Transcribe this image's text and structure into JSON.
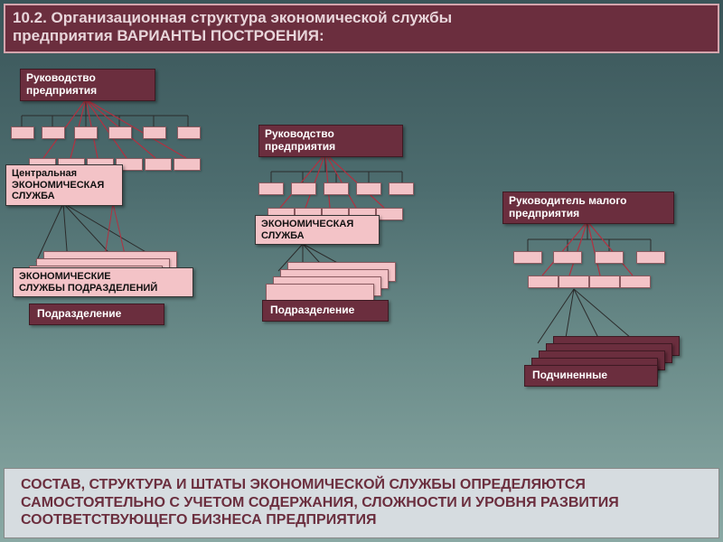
{
  "colors": {
    "bg_top": "#3a5559",
    "bg_bottom": "#8aa9a4",
    "maroon": "#6b2e3e",
    "maroon_border": "#d4a5ad",
    "pink": "#f3c3c7",
    "footer_bg": "#d6dce0",
    "line_red": "#b33040",
    "line_dark": "#2b2b2b"
  },
  "title": {
    "line1": "10.2. Организационная структура экономической службы",
    "line2": "предприятия                  ВАРИАНТЫ ПОСТРОЕНИЯ:"
  },
  "footer": "      СОСТАВ, СТРУКТУРА И ШТАТЫ ЭКОНОМИЧЕСКОЙ СЛУЖБЫ ОПРЕДЕЛЯЮТСЯ  САМОСТОЯТЕЛЬНО С УЧЕТОМ СОДЕРЖАНИЯ, СЛОЖНОСТИ И УРОВНЯ РАЗВИТИЯ СООТВЕТСТВУЮЩЕГО БИЗНЕСА ПРЕДПРИЯТИЯ",
  "variant1": {
    "head": "Руководство\nпредприятия",
    "central_svc": "Центральная\nЭКОНОМИЧЕСКАЯ\nСЛУЖБА",
    "econ_depts": "ЭКОНОМИЧЕСКИЕ\nСЛУЖБЫ ПОДРАЗДЕЛЕНИЙ",
    "dept": "Подразделение"
  },
  "variant2": {
    "head": "Руководство\nпредприятия",
    "svc": "ЭКОНОМИЧЕСКАЯ\nСЛУЖБА",
    "dept": "Подразделение"
  },
  "variant3": {
    "head": "Руководитель малого\nпредприятия",
    "sub": "Подчиненные"
  }
}
